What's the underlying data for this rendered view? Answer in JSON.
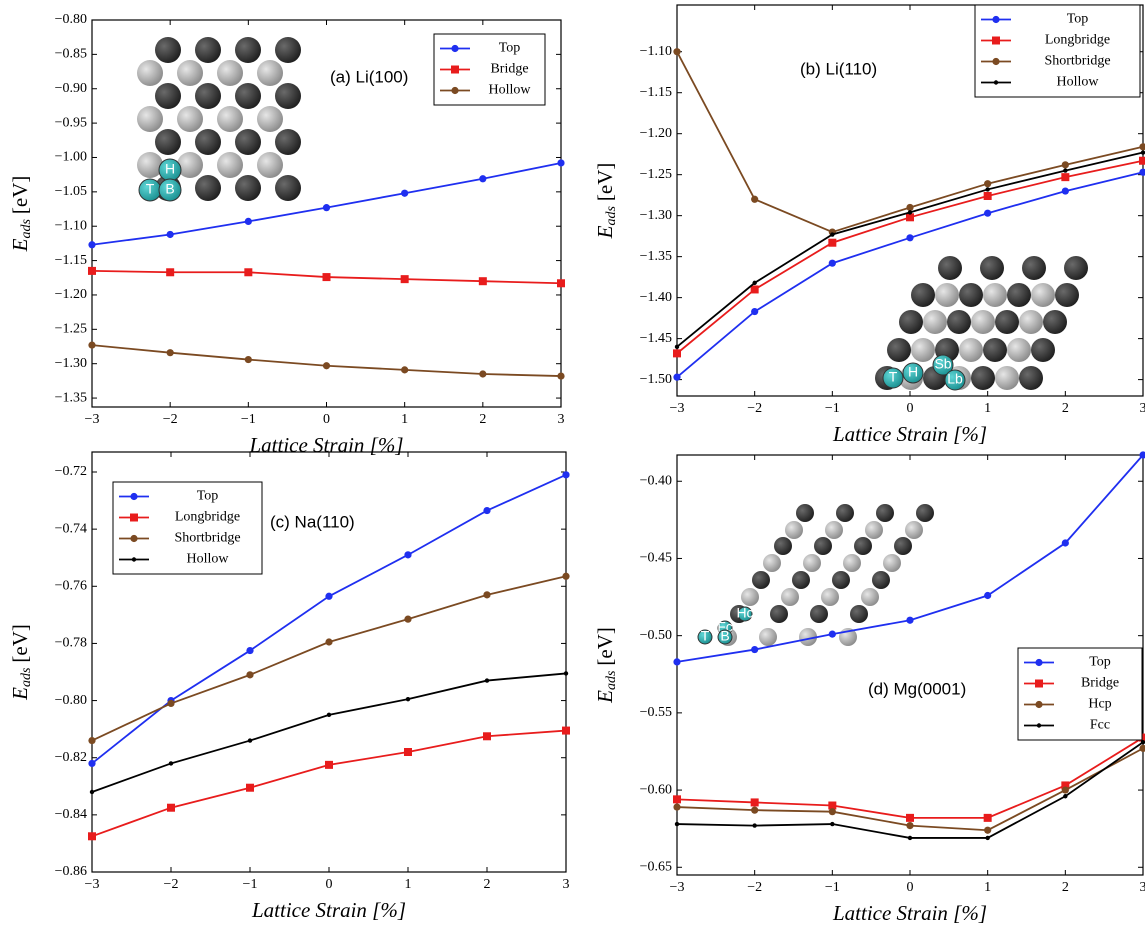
{
  "chart_data": [
    {
      "type": "line",
      "annotation": "(a) Li(100)",
      "xlabel": "Lattice Strain [%]",
      "ylabel": "E",
      "ylabel_sub": "ads",
      "ylabel_unit": "[eV]",
      "x": [
        -3,
        -2,
        -1,
        0,
        1,
        2,
        3
      ],
      "xlim": [
        -3,
        3
      ],
      "ylim": [
        -1.363,
        -0.8
      ],
      "grid": false,
      "legend": "upper right",
      "xticks": [
        {
          "value": -3,
          "label": "−3"
        },
        {
          "value": -2,
          "label": "−2"
        },
        {
          "value": -1,
          "label": "−1"
        },
        0,
        1,
        2,
        3
      ],
      "yticks": [
        {
          "value": -0.8,
          "label": "−0.80"
        },
        {
          "value": -0.85,
          "label": "−0.85"
        },
        {
          "value": -0.9,
          "label": "−0.90"
        },
        {
          "value": -0.95,
          "label": "−0.95"
        },
        {
          "value": -1.0,
          "label": "−1.00"
        },
        {
          "value": -1.05,
          "label": "−1.05"
        },
        {
          "value": -1.1,
          "label": "−1.10"
        },
        {
          "value": -1.15,
          "label": "−1.15"
        },
        {
          "value": -1.2,
          "label": "−1.20"
        },
        {
          "value": -1.25,
          "label": "−1.25"
        },
        {
          "value": -1.3,
          "label": "−1.30"
        },
        {
          "value": -1.35,
          "label": "−1.35"
        }
      ],
      "series": [
        {
          "name": "Top",
          "color": "#1f2ff0",
          "marker": "circle",
          "values": [
            -1.127,
            -1.112,
            -1.093,
            -1.073,
            -1.052,
            -1.031,
            -1.008
          ]
        },
        {
          "name": "Bridge",
          "color": "#e81c1c",
          "marker": "square",
          "values": [
            -1.165,
            -1.167,
            -1.167,
            -1.174,
            -1.177,
            -1.18,
            -1.183
          ]
        },
        {
          "name": "Hollow",
          "color": "#7b4a22",
          "marker": "circle",
          "values": [
            -1.273,
            -1.284,
            -1.294,
            -1.303,
            -1.309,
            -1.315,
            -1.318
          ]
        }
      ],
      "inset_labels": [
        "H",
        "T",
        "B"
      ]
    },
    {
      "type": "line",
      "annotation": "(b) Li(110)",
      "xlabel": "Lattice Strain [%]",
      "ylabel": "E",
      "ylabel_sub": "ads",
      "ylabel_unit": "[eV]",
      "x": [
        -3,
        -2,
        -1,
        0,
        1,
        2,
        3
      ],
      "xlim": [
        -3,
        3
      ],
      "ylim": [
        -1.52,
        -1.043
      ],
      "grid": false,
      "legend": "upper right",
      "xticks": [
        {
          "value": -3,
          "label": "−3"
        },
        {
          "value": -2,
          "label": "−2"
        },
        {
          "value": -1,
          "label": "−1"
        },
        0,
        1,
        2,
        3
      ],
      "yticks": [
        {
          "value": -1.1,
          "label": "−1.10"
        },
        {
          "value": -1.15,
          "label": "−1.15"
        },
        {
          "value": -1.2,
          "label": "−1.20"
        },
        {
          "value": -1.25,
          "label": "−1.25"
        },
        {
          "value": -1.3,
          "label": "−1.30"
        },
        {
          "value": -1.35,
          "label": "−1.35"
        },
        {
          "value": -1.4,
          "label": "−1.40"
        },
        {
          "value": -1.45,
          "label": "−1.45"
        },
        {
          "value": -1.5,
          "label": "−1.50"
        }
      ],
      "series": [
        {
          "name": "Top",
          "color": "#1f2ff0",
          "marker": "circle",
          "values": [
            -1.497,
            -1.417,
            -1.358,
            -1.327,
            -1.297,
            -1.27,
            -1.247
          ]
        },
        {
          "name": "Longbridge",
          "color": "#e81c1c",
          "marker": "square",
          "values": [
            -1.468,
            -1.39,
            -1.333,
            -1.302,
            -1.276,
            -1.253,
            -1.233
          ]
        },
        {
          "name": "Shortbridge",
          "color": "#7b4a22",
          "marker": "circle",
          "values": [
            -1.1,
            -1.28,
            -1.32,
            -1.29,
            -1.261,
            -1.238,
            -1.216
          ]
        },
        {
          "name": "Hollow",
          "color": "#000000",
          "marker": "dot",
          "values": [
            -1.46,
            -1.382,
            -1.323,
            -1.296,
            -1.268,
            -1.245,
            -1.223
          ]
        }
      ],
      "inset_labels": [
        "T",
        "H",
        "Sb",
        "Lb"
      ]
    },
    {
      "type": "line",
      "annotation": "(c) Na(110)",
      "xlabel": "Lattice Strain [%]",
      "ylabel": "E",
      "ylabel_sub": "ads",
      "ylabel_unit": "[eV]",
      "x": [
        -3,
        -2,
        -1,
        0,
        1,
        2,
        3
      ],
      "xlim": [
        -3,
        3
      ],
      "ylim": [
        -0.86,
        -0.713
      ],
      "grid": false,
      "legend": "upper left",
      "xticks": [
        {
          "value": -3,
          "label": "−3"
        },
        {
          "value": -2,
          "label": "−2"
        },
        {
          "value": -1,
          "label": "−1"
        },
        0,
        1,
        2,
        3
      ],
      "yticks": [
        {
          "value": -0.72,
          "label": "−0.72"
        },
        {
          "value": -0.74,
          "label": "−0.74"
        },
        {
          "value": -0.76,
          "label": "−0.76"
        },
        {
          "value": -0.78,
          "label": "−0.78"
        },
        {
          "value": -0.8,
          "label": "−0.80"
        },
        {
          "value": -0.82,
          "label": "−0.82"
        },
        {
          "value": -0.84,
          "label": "−0.84"
        },
        {
          "value": -0.86,
          "label": "−0.86"
        }
      ],
      "series": [
        {
          "name": "Top",
          "color": "#1f2ff0",
          "marker": "circle",
          "values": [
            -0.822,
            -0.8,
            -0.7825,
            -0.7635,
            -0.749,
            -0.7335,
            -0.721
          ]
        },
        {
          "name": "Longbridge",
          "color": "#e81c1c",
          "marker": "square",
          "values": [
            -0.8475,
            -0.8375,
            -0.8305,
            -0.8225,
            -0.818,
            -0.8125,
            -0.8105
          ]
        },
        {
          "name": "Shortbridge",
          "color": "#7b4a22",
          "marker": "circle",
          "values": [
            -0.814,
            -0.801,
            -0.791,
            -0.7795,
            -0.7715,
            -0.763,
            -0.7565
          ]
        },
        {
          "name": "Hollow",
          "color": "#000000",
          "marker": "dot",
          "values": [
            -0.832,
            -0.822,
            -0.814,
            -0.805,
            -0.7995,
            -0.793,
            -0.7905
          ]
        }
      ]
    },
    {
      "type": "line",
      "annotation": "(d) Mg(0001)",
      "xlabel": "Lattice Strain [%]",
      "ylabel": "E",
      "ylabel_sub": "ads",
      "ylabel_unit": "[eV]",
      "x": [
        -3,
        -2,
        -1,
        0,
        1,
        2,
        3
      ],
      "xlim": [
        -3,
        3
      ],
      "ylim": [
        -0.655,
        -0.383
      ],
      "grid": false,
      "legend": "right",
      "xticks": [
        {
          "value": -3,
          "label": "−3"
        },
        {
          "value": -2,
          "label": "−2"
        },
        {
          "value": -1,
          "label": "−1"
        },
        0,
        1,
        2,
        3
      ],
      "yticks": [
        {
          "value": -0.4,
          "label": "−0.40"
        },
        {
          "value": -0.45,
          "label": "−0.45"
        },
        {
          "value": -0.5,
          "label": "−0.50"
        },
        {
          "value": -0.55,
          "label": "−0.55"
        },
        {
          "value": -0.6,
          "label": "−0.60"
        },
        {
          "value": -0.65,
          "label": "−0.65"
        }
      ],
      "series": [
        {
          "name": "Top",
          "color": "#1f2ff0",
          "marker": "circle",
          "values": [
            -0.517,
            -0.509,
            -0.499,
            -0.49,
            -0.474,
            -0.44,
            -0.383
          ]
        },
        {
          "name": "Bridge",
          "color": "#e81c1c",
          "marker": "square",
          "values": [
            -0.606,
            -0.608,
            -0.61,
            -0.618,
            -0.618,
            -0.597,
            -0.566
          ]
        },
        {
          "name": "Hcp",
          "color": "#7b4a22",
          "marker": "circle",
          "values": [
            -0.611,
            -0.613,
            -0.614,
            -0.623,
            -0.626,
            -0.6,
            -0.573
          ]
        },
        {
          "name": "Fcc",
          "color": "#000000",
          "marker": "dot",
          "values": [
            -0.622,
            -0.623,
            -0.622,
            -0.631,
            -0.631,
            -0.604,
            -0.569
          ]
        }
      ],
      "inset_labels": [
        "Hc",
        "Fc",
        "T",
        "B"
      ]
    }
  ]
}
